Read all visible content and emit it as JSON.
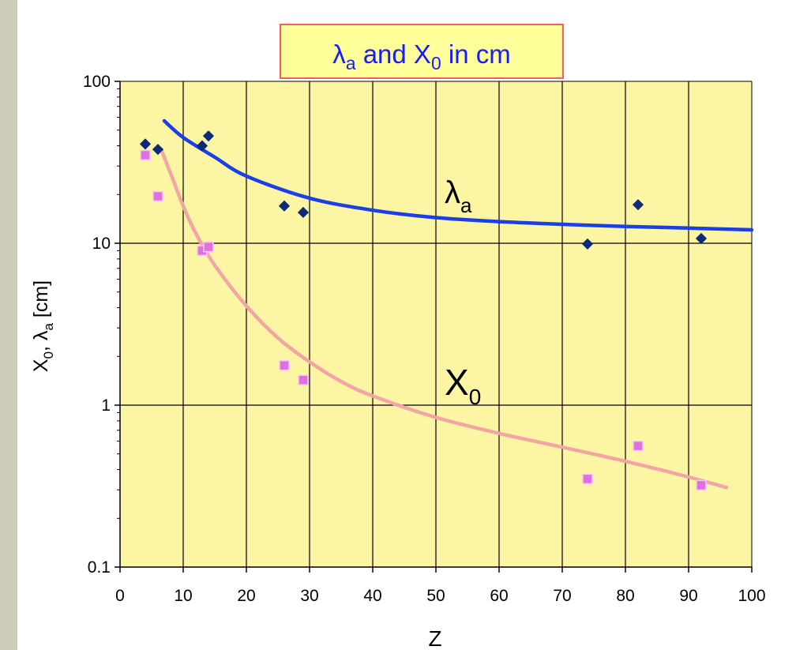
{
  "chart_data": {
    "type": "scatter",
    "title": {
      "base1": "λ",
      "sub1": "a",
      "mid": " and X",
      "sub2": "0",
      "tail": " in cm"
    },
    "xlabel": "Z",
    "ylabel": {
      "a": "X",
      "a_sub": "0",
      "b": ", λ",
      "b_sub": "a",
      "c": " [cm]"
    },
    "xlim": [
      0,
      100
    ],
    "ylim": [
      0.1,
      100
    ],
    "yscale": "log",
    "grid": true,
    "x_ticks": [
      "0",
      "10",
      "20",
      "30",
      "40",
      "50",
      "60",
      "70",
      "80",
      "90",
      "100"
    ],
    "y_ticks": [
      "0.1",
      "1",
      "10",
      "100"
    ],
    "colors": {
      "plot_bg": "#fbf5a4",
      "title_bg": "#ffff99",
      "title_border": "#ff5a5a",
      "title_text": "#1a1aff",
      "lambda": "#1a3fe6",
      "lambda_point": "#0d2a78",
      "x0": "#f2a5a5",
      "x0_point": "#e070e0"
    },
    "series": [
      {
        "name": "λa",
        "label": {
          "base": "λ",
          "sub": "a"
        },
        "points": [
          [
            4,
            41
          ],
          [
            6,
            38
          ],
          [
            13,
            40
          ],
          [
            14,
            46
          ],
          [
            26,
            17
          ],
          [
            29,
            15.5
          ],
          [
            74,
            9.9
          ],
          [
            82,
            17.3
          ],
          [
            92,
            10.7
          ]
        ],
        "fit": [
          [
            7,
            57
          ],
          [
            10,
            45
          ],
          [
            15,
            34
          ],
          [
            20,
            26
          ],
          [
            30,
            19
          ],
          [
            40,
            16
          ],
          [
            50,
            14.4
          ],
          [
            60,
            13.6
          ],
          [
            70,
            13.1
          ],
          [
            80,
            12.7
          ],
          [
            90,
            12.4
          ],
          [
            100,
            12.1
          ]
        ]
      },
      {
        "name": "X0",
        "label": {
          "base": "X",
          "sub": "0"
        },
        "points": [
          [
            4,
            35
          ],
          [
            6,
            19.5
          ],
          [
            13,
            9
          ],
          [
            14,
            9.5
          ],
          [
            26,
            1.76
          ],
          [
            29,
            1.43
          ],
          [
            74,
            0.35
          ],
          [
            82,
            0.56
          ],
          [
            92,
            0.32
          ]
        ],
        "fit": [
          [
            6.5,
            38
          ],
          [
            8,
            27
          ],
          [
            10,
            17
          ],
          [
            12,
            11.5
          ],
          [
            15,
            7.3
          ],
          [
            20,
            4.1
          ],
          [
            25,
            2.6
          ],
          [
            30,
            1.85
          ],
          [
            35,
            1.4
          ],
          [
            40,
            1.14
          ],
          [
            50,
            0.84
          ],
          [
            60,
            0.67
          ],
          [
            70,
            0.55
          ],
          [
            80,
            0.45
          ],
          [
            90,
            0.36
          ],
          [
            96,
            0.31
          ]
        ]
      }
    ]
  }
}
